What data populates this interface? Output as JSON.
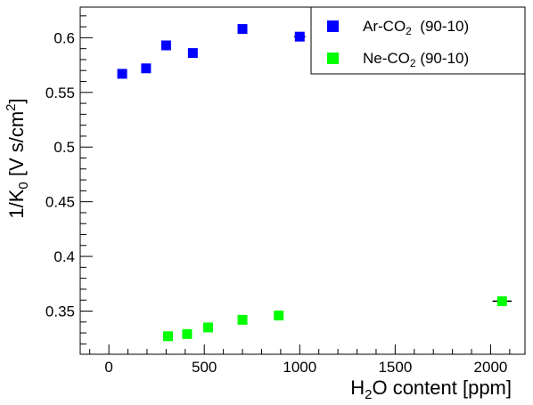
{
  "chart_data": {
    "type": "scatter",
    "title": "",
    "xlabel": {
      "pre": "H",
      "sub": "2",
      "post": "O content [ppm]"
    },
    "ylabel": {
      "pre": "1/K",
      "sub": "0",
      "mid": " [V s/cm",
      "sup": "2",
      "post": "]"
    },
    "xlim": [
      -150,
      2180
    ],
    "ylim": [
      0.3105,
      0.628
    ],
    "xticks": [
      0,
      500,
      1000,
      1500,
      2000
    ],
    "yticks": [
      0.35,
      0.4,
      0.45,
      0.5,
      0.55,
      0.6
    ],
    "xtick_labels": [
      "0",
      "500",
      "1000",
      "1500",
      "2000"
    ],
    "ytick_labels": [
      "0.35",
      "0.4",
      "0.45",
      "0.5",
      "0.55",
      "0.6"
    ],
    "legend_position": "top-right",
    "series": [
      {
        "name": {
          "pre": "Ar-CO",
          "sub": "2",
          "post": "  (90-10)"
        },
        "color": "#0000ff",
        "marker": "square",
        "points": [
          {
            "x": 70,
            "y": 0.567,
            "xerr": 0,
            "yerr": 0.004
          },
          {
            "x": 195,
            "y": 0.572,
            "xerr": 0,
            "yerr": 0.004
          },
          {
            "x": 300,
            "y": 0.593,
            "xerr": 0,
            "yerr": 0
          },
          {
            "x": 440,
            "y": 0.586,
            "xerr": 0,
            "yerr": 0
          },
          {
            "x": 700,
            "y": 0.608,
            "xerr": 0,
            "yerr": 0
          },
          {
            "x": 1000,
            "y": 0.601,
            "xerr": 30,
            "yerr": 0.003
          }
        ]
      },
      {
        "name": {
          "pre": "Ne-CO",
          "sub": "2",
          "post": " (90-10)"
        },
        "color": "#00ff00",
        "marker": "square",
        "points": [
          {
            "x": 310,
            "y": 0.327,
            "xerr": 0,
            "yerr": 0.003
          },
          {
            "x": 410,
            "y": 0.329,
            "xerr": 0,
            "yerr": 0.003
          },
          {
            "x": 520,
            "y": 0.335,
            "xerr": 0,
            "yerr": 0
          },
          {
            "x": 700,
            "y": 0.342,
            "xerr": 0,
            "yerr": 0
          },
          {
            "x": 890,
            "y": 0.346,
            "xerr": 0,
            "yerr": 0
          },
          {
            "x": 2060,
            "y": 0.359,
            "xerr": 50,
            "yerr": 0.003
          }
        ]
      }
    ]
  }
}
